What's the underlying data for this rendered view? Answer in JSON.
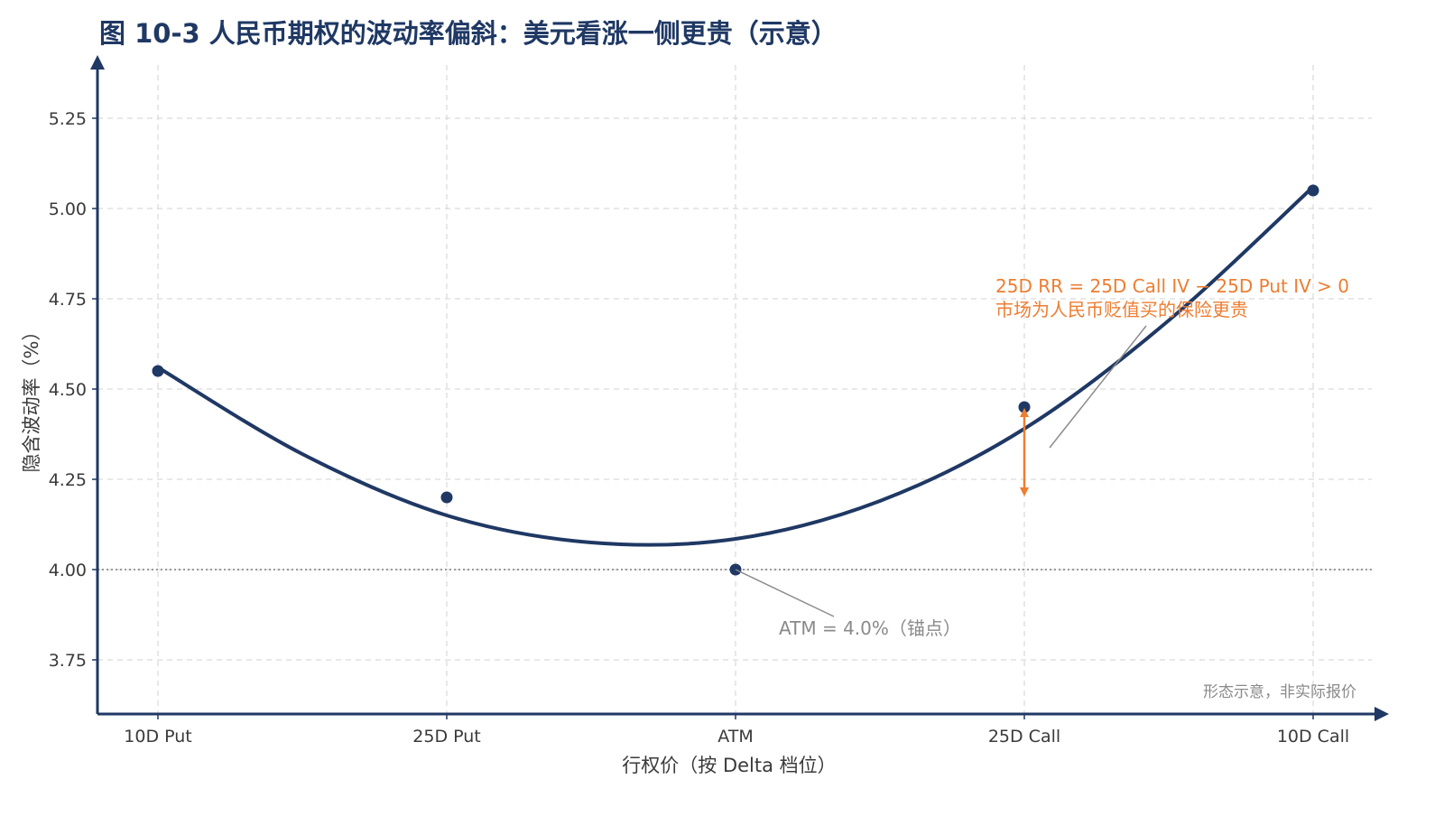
{
  "chart_data": {
    "type": "line",
    "title": "图 10-3 人民币期权的波动率偏斜：美元看涨一侧更贵（示意）",
    "xlabel": "行权价（按 Delta 档位）",
    "ylabel": "隐含波动率（%）",
    "categories": [
      "10D Put",
      "25D Put",
      "ATM",
      "25D Call",
      "10D Call"
    ],
    "ylim": [
      3.6,
      5.4
    ],
    "yticks": [
      3.75,
      4.0,
      4.25,
      4.5,
      4.75,
      5.0,
      5.25
    ],
    "ytick_labels": [
      "3.75",
      "4.00",
      "4.25",
      "4.50",
      "4.75",
      "5.00",
      "5.25"
    ],
    "grid": true,
    "points": {
      "values": [
        4.55,
        4.2,
        4.0,
        4.45,
        5.05
      ],
      "color": "#1f3864"
    },
    "curve": {
      "x": [
        0,
        0.5,
        1,
        1.5,
        2,
        2.5,
        3,
        3.5,
        4
      ],
      "values": [
        4.56,
        4.32,
        4.15,
        4.075,
        4.085,
        4.19,
        4.39,
        4.69,
        5.06
      ],
      "color": "#1f3864"
    },
    "reference_line": {
      "y": 4.0
    },
    "annotations": {
      "rr_line1": "25D RR = 25D Call IV − 25D Put IV > 0",
      "rr_line2": "市场为人民币贬值买的保险更贵",
      "atm_label": "ATM = 4.0%（锚点）",
      "footnote": "形态示意，非实际报价"
    },
    "colors": {
      "accent": "#ed7d31",
      "navy": "#1f3864",
      "grid": "#d9d9d9",
      "muted": "#8a8a8a"
    }
  }
}
